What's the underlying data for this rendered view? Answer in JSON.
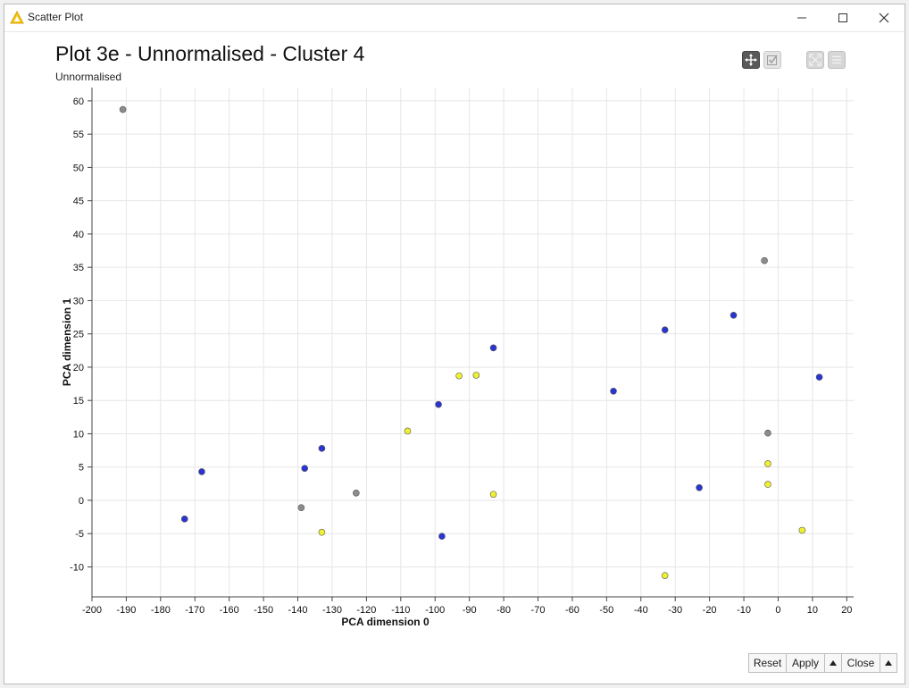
{
  "window": {
    "title": "Scatter Plot",
    "icon": "knime-warning-icon"
  },
  "toolbar": {
    "pan_icon": "pan-move-icon",
    "select_icon": "select-check-icon",
    "fit_icon": "fit-view-icon",
    "menu_icon": "menu-icon"
  },
  "footer": {
    "reset_label": "Reset",
    "apply_label": "Apply",
    "close_label": "Close"
  },
  "colors": {
    "blue": "#2a35d1",
    "yellow": "#eef030",
    "gray": "#8c8c8c"
  },
  "chart_data": {
    "type": "scatter",
    "title": "Plot 3e - Unnormalised - Cluster 4",
    "subtitle": "Unnormalised",
    "xlabel": "PCA dimension 0",
    "ylabel": "PCA dimension 1",
    "xlim": [
      -200,
      22
    ],
    "ylim": [
      -14.5,
      62
    ],
    "xticks": [
      -200,
      -190,
      -180,
      -170,
      -160,
      -150,
      -140,
      -130,
      -120,
      -110,
      -100,
      -90,
      -80,
      -70,
      -60,
      -50,
      -40,
      -30,
      -20,
      -10,
      0,
      10,
      20
    ],
    "yticks": [
      -10,
      -5,
      0,
      5,
      10,
      15,
      20,
      25,
      30,
      35,
      40,
      45,
      50,
      55,
      60
    ],
    "grid": true,
    "series": [
      {
        "color": "blue",
        "points": [
          [
            -173,
            -2.8
          ],
          [
            -168,
            4.3
          ],
          [
            -138,
            4.8
          ],
          [
            -133,
            7.8
          ],
          [
            -99,
            14.4
          ],
          [
            -98,
            -5.4
          ],
          [
            -83,
            22.9
          ],
          [
            -48,
            16.4
          ],
          [
            -33,
            25.6
          ],
          [
            -23,
            1.9
          ],
          [
            -13,
            27.8
          ],
          [
            12,
            18.5
          ]
        ]
      },
      {
        "color": "yellow",
        "points": [
          [
            -133,
            -4.8
          ],
          [
            -108,
            10.4
          ],
          [
            -93,
            18.7
          ],
          [
            -88,
            18.8
          ],
          [
            -83,
            0.9
          ],
          [
            -33,
            -11.3
          ],
          [
            -3,
            5.5
          ],
          [
            -3,
            2.4
          ],
          [
            7,
            -4.5
          ]
        ]
      },
      {
        "color": "gray",
        "points": [
          [
            -191,
            58.7
          ],
          [
            -139,
            -1.1
          ],
          [
            -123,
            1.1
          ],
          [
            -4,
            36.0
          ],
          [
            -3,
            10.1
          ]
        ]
      }
    ]
  }
}
